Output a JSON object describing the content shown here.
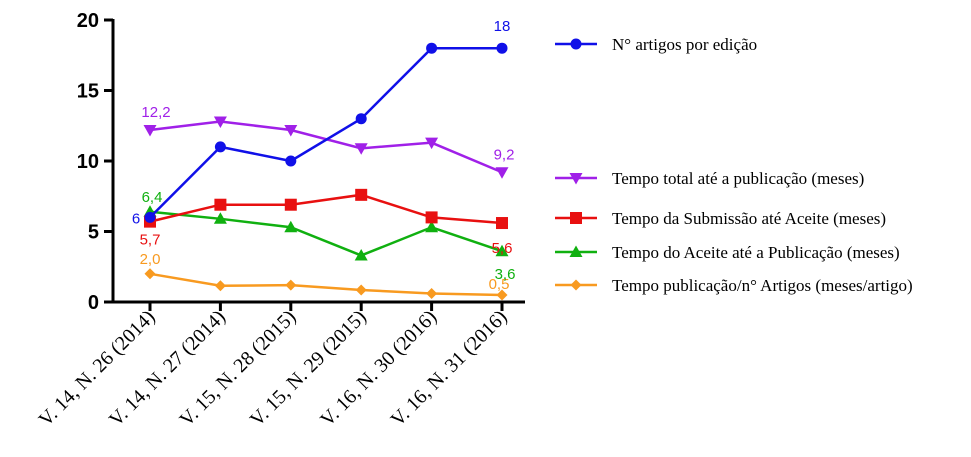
{
  "chart_data": {
    "type": "line",
    "categories": [
      "V. 14, N. 26 (2014)",
      "V. 14, N. 27 (2014)",
      "V. 15, N. 28 (2015)",
      "V. 15, N. 29 (2015)",
      "V. 16, N. 30 (2016)",
      "V. 16, N. 31 (2016)"
    ],
    "ylim": [
      0,
      20
    ],
    "yticks": [
      0,
      5,
      10,
      15,
      20
    ],
    "ytick_labels": [
      "0",
      "5",
      "10",
      "15",
      "20"
    ],
    "grid": false,
    "legend_position": "right",
    "series": [
      {
        "name": "N° artigos por edição",
        "color": "#1010e8",
        "marker": "circle",
        "values": [
          6,
          11,
          10,
          13,
          18,
          18
        ],
        "data_labels": [
          {
            "index": 0,
            "text": "6"
          },
          {
            "index": 5,
            "text": "18"
          }
        ]
      },
      {
        "name": "Tempo total até a publicação (meses)",
        "color": "#a020e8",
        "marker": "triangle-down",
        "values": [
          12.2,
          12.8,
          12.2,
          10.9,
          11.3,
          9.2
        ],
        "data_labels": [
          {
            "index": 0,
            "text": "12,2"
          },
          {
            "index": 5,
            "text": "9,2"
          }
        ]
      },
      {
        "name": "Tempo da  Submissão até Aceite (meses)",
        "color": "#e81010",
        "marker": "square",
        "values": [
          5.7,
          6.9,
          6.9,
          7.6,
          6.0,
          5.6
        ],
        "data_labels": [
          {
            "index": 0,
            "text": "5,7"
          },
          {
            "index": 5,
            "text": "5,6"
          }
        ]
      },
      {
        "name": "Tempo do Aceite até a Publicação (meses)",
        "color": "#10b010",
        "marker": "triangle-up",
        "values": [
          6.4,
          5.9,
          5.3,
          3.3,
          5.3,
          3.6
        ],
        "data_labels": [
          {
            "index": 0,
            "text": "6,4"
          },
          {
            "index": 5,
            "text": "3,6"
          }
        ]
      },
      {
        "name": "Tempo publicação/n° Artigos (meses/artigo)",
        "color": "#f89a20",
        "marker": "diamond",
        "values": [
          2.0,
          1.15,
          1.2,
          0.85,
          0.6,
          0.5
        ],
        "data_labels": [
          {
            "index": 0,
            "text": "2,0"
          },
          {
            "index": 5,
            "text": "0,5"
          }
        ]
      }
    ]
  }
}
